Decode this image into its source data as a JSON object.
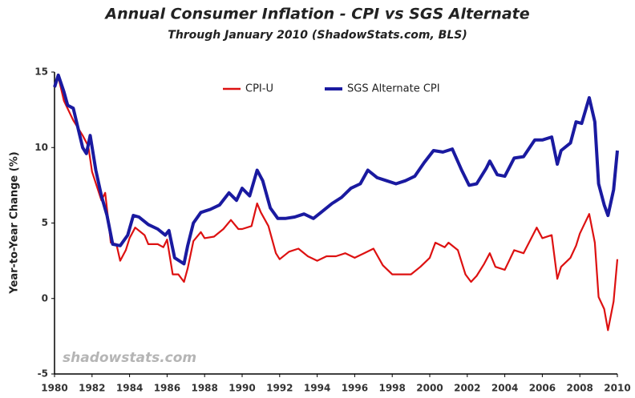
{
  "chart_data": {
    "type": "line",
    "title": "Annual Consumer Inflation - CPI vs SGS Alternate",
    "subtitle": "Through January 2010 (ShadowStats.com, BLS)",
    "y_label": "Year-to-Year Change (%)",
    "annotation": "shadowstats.com",
    "xlim": [
      1980,
      2010
    ],
    "xticks": [
      1980,
      1982,
      1984,
      1986,
      1988,
      1990,
      1992,
      1994,
      1996,
      1998,
      2000,
      2002,
      2004,
      2006,
      2008,
      2010
    ],
    "ylim": [
      -5,
      15
    ],
    "yticks": [
      -5,
      0,
      5,
      10,
      15
    ],
    "grid": false,
    "legend": "top",
    "series": [
      {
        "name": "CPI-U",
        "color": "#dd1111",
        "x": [
          1980.0,
          1980.2,
          1980.5,
          1981.0,
          1981.5,
          1981.8,
          1982.0,
          1982.5,
          1982.7,
          1983.0,
          1983.3,
          1983.5,
          1983.8,
          1984.0,
          1984.3,
          1984.8,
          1985.0,
          1985.5,
          1985.8,
          1986.0,
          1986.3,
          1986.6,
          1986.9,
          1987.1,
          1987.4,
          1987.8,
          1988.0,
          1988.5,
          1989.0,
          1989.4,
          1989.8,
          1990.0,
          1990.5,
          1990.8,
          1991.0,
          1991.4,
          1991.8,
          1992.0,
          1992.5,
          1993.0,
          1993.5,
          1994.0,
          1994.5,
          1995.0,
          1995.5,
          1996.0,
          1996.5,
          1997.0,
          1997.5,
          1998.0,
          1998.5,
          1999.0,
          1999.5,
          2000.0,
          2000.3,
          2000.8,
          2001.0,
          2001.5,
          2001.9,
          2002.2,
          2002.5,
          2002.9,
          2003.2,
          2003.5,
          2004.0,
          2004.5,
          2005.0,
          2005.7,
          2006.0,
          2006.5,
          2006.8,
          2007.0,
          2007.5,
          2007.8,
          2008.0,
          2008.5,
          2008.8,
          2009.0,
          2009.3,
          2009.5,
          2009.8,
          2010.0
        ],
        "values": [
          14.0,
          14.7,
          13.1,
          11.8,
          10.8,
          10.1,
          8.4,
          6.5,
          7.0,
          3.7,
          3.6,
          2.5,
          3.2,
          4.0,
          4.7,
          4.2,
          3.6,
          3.6,
          3.4,
          3.9,
          1.6,
          1.6,
          1.1,
          2.0,
          3.8,
          4.4,
          4.0,
          4.1,
          4.6,
          5.2,
          4.6,
          4.6,
          4.8,
          6.3,
          5.7,
          4.8,
          3.0,
          2.6,
          3.1,
          3.3,
          2.8,
          2.5,
          2.8,
          2.8,
          3.0,
          2.7,
          3.0,
          3.3,
          2.2,
          1.6,
          1.6,
          1.6,
          2.1,
          2.7,
          3.7,
          3.4,
          3.7,
          3.2,
          1.6,
          1.1,
          1.5,
          2.3,
          3.0,
          2.1,
          1.9,
          3.2,
          3.0,
          4.7,
          4.0,
          4.2,
          1.3,
          2.1,
          2.7,
          3.5,
          4.3,
          5.6,
          3.7,
          0.1,
          -0.7,
          -2.1,
          -0.2,
          2.6
        ]
      },
      {
        "name": "SGS Alternate CPI",
        "color": "#1a1aa0",
        "x": [
          1980.0,
          1980.2,
          1980.5,
          1980.7,
          1981.0,
          1981.5,
          1981.7,
          1981.9,
          1982.2,
          1982.5,
          1982.8,
          1983.1,
          1983.5,
          1983.9,
          1984.2,
          1984.5,
          1985.0,
          1985.5,
          1985.9,
          1986.1,
          1986.4,
          1986.9,
          1987.1,
          1987.4,
          1987.8,
          1988.3,
          1988.8,
          1989.3,
          1989.7,
          1990.0,
          1990.4,
          1990.8,
          1991.1,
          1991.5,
          1991.9,
          1992.3,
          1992.8,
          1993.3,
          1993.8,
          1994.2,
          1994.8,
          1995.3,
          1995.8,
          1996.3,
          1996.7,
          1997.2,
          1997.7,
          1998.2,
          1998.7,
          1999.2,
          1999.7,
          2000.2,
          2000.7,
          2001.2,
          2001.7,
          2002.1,
          2002.5,
          2003.0,
          2003.2,
          2003.6,
          2004.0,
          2004.5,
          2005.0,
          2005.6,
          2006.0,
          2006.5,
          2006.8,
          2007.0,
          2007.5,
          2007.8,
          2008.1,
          2008.5,
          2008.8,
          2009.0,
          2009.3,
          2009.5,
          2009.8,
          2010.0
        ],
        "values": [
          14.0,
          14.8,
          13.7,
          12.8,
          12.6,
          10.0,
          9.6,
          10.8,
          8.5,
          6.8,
          5.5,
          3.6,
          3.5,
          4.2,
          5.5,
          5.4,
          4.9,
          4.6,
          4.2,
          4.5,
          2.7,
          2.3,
          3.5,
          5.0,
          5.7,
          5.9,
          6.2,
          7.0,
          6.5,
          7.3,
          6.8,
          8.5,
          7.8,
          6.0,
          5.3,
          5.3,
          5.4,
          5.6,
          5.3,
          5.7,
          6.3,
          6.7,
          7.3,
          7.6,
          8.5,
          8.0,
          7.8,
          7.6,
          7.8,
          8.1,
          9.0,
          9.8,
          9.7,
          9.9,
          8.5,
          7.5,
          7.6,
          8.6,
          9.1,
          8.2,
          8.1,
          9.3,
          9.4,
          10.5,
          10.5,
          10.7,
          8.9,
          9.8,
          10.3,
          11.7,
          11.6,
          13.3,
          11.7,
          7.6,
          6.2,
          5.5,
          7.2,
          9.8
        ]
      }
    ]
  }
}
